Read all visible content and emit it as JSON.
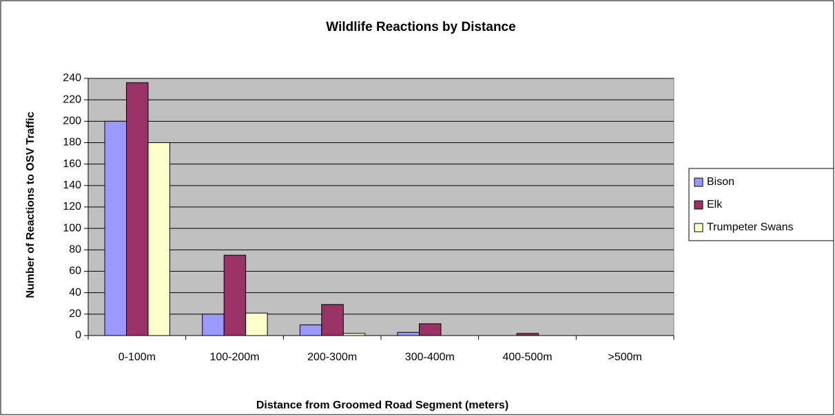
{
  "chart_data": {
    "type": "bar",
    "title": "Wildlife Reactions by Distance",
    "x_label": "Distance from Groomed Road Segment (meters)",
    "y_label": "Number of Reactions to OSV Traffic",
    "categories": [
      "0-100m",
      "100-200m",
      "200-300m",
      "300-400m",
      "400-500m",
      ">500m"
    ],
    "series": [
      {
        "name": "Bison",
        "color": "#9999ff",
        "values": [
          200,
          20,
          10,
          3,
          0,
          0
        ]
      },
      {
        "name": "Elk",
        "color": "#993366",
        "values": [
          236,
          75,
          29,
          11,
          2,
          0
        ]
      },
      {
        "name": "Trumpeter Swans",
        "color": "#ffffcc",
        "values": [
          180,
          21,
          2,
          0,
          0,
          0
        ]
      }
    ],
    "ylim": [
      0,
      240
    ],
    "yticks": [
      0,
      20,
      40,
      60,
      80,
      100,
      120,
      140,
      160,
      180,
      200,
      220,
      240
    ],
    "grid": true,
    "legend": "right"
  }
}
